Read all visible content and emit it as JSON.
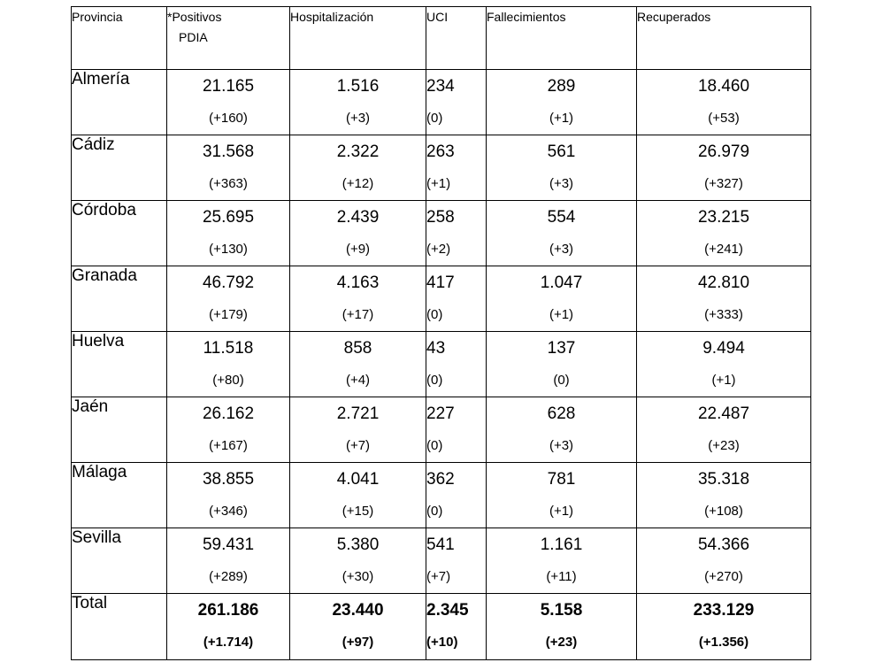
{
  "headers": {
    "provincia": "Provincia",
    "positivos_line1": "*Positivos",
    "positivos_line2": "PDIA",
    "hospitalizacion": "Hospitalización",
    "uci": "UCI",
    "fallecimientos": "Fallecimientos",
    "recuperados": "Recuperados"
  },
  "rows": [
    {
      "province": "Almería",
      "positivos": "21.165",
      "positivos_delta": "(+160)",
      "hosp": "1.516",
      "hosp_delta": "(+3)",
      "uci": "234",
      "uci_delta": "(0)",
      "fall": "289",
      "fall_delta": "(+1)",
      "rec": "18.460",
      "rec_delta": "(+53)"
    },
    {
      "province": "Cádiz",
      "positivos": "31.568",
      "positivos_delta": "(+363)",
      "hosp": "2.322",
      "hosp_delta": "(+12)",
      "uci": "263",
      "uci_delta": "(+1)",
      "fall": "561",
      "fall_delta": "(+3)",
      "rec": "26.979",
      "rec_delta": "(+327)"
    },
    {
      "province": "Córdoba",
      "positivos": "25.695",
      "positivos_delta": "(+130)",
      "hosp": "2.439",
      "hosp_delta": "(+9)",
      "uci": "258",
      "uci_delta": "(+2)",
      "fall": "554",
      "fall_delta": "(+3)",
      "rec": "23.215",
      "rec_delta": "(+241)"
    },
    {
      "province": "Granada",
      "positivos": "46.792",
      "positivos_delta": "(+179)",
      "hosp": "4.163",
      "hosp_delta": "(+17)",
      "uci": "417",
      "uci_delta": "(0)",
      "fall": "1.047",
      "fall_delta": "(+1)",
      "rec": "42.810",
      "rec_delta": "(+333)"
    },
    {
      "province": "Huelva",
      "positivos": "11.518",
      "positivos_delta": "(+80)",
      "hosp": "858",
      "hosp_delta": "(+4)",
      "uci": "43",
      "uci_delta": "(0)",
      "fall": "137",
      "fall_delta": "(0)",
      "rec": "9.494",
      "rec_delta": "(+1)"
    },
    {
      "province": "Jaén",
      "positivos": "26.162",
      "positivos_delta": "(+167)",
      "hosp": "2.721",
      "hosp_delta": "(+7)",
      "uci": "227",
      "uci_delta": "(0)",
      "fall": "628",
      "fall_delta": "(+3)",
      "rec": "22.487",
      "rec_delta": "(+23)"
    },
    {
      "province": "Málaga",
      "positivos": "38.855",
      "positivos_delta": "(+346)",
      "hosp": "4.041",
      "hosp_delta": "(+15)",
      "uci": "362",
      "uci_delta": "(0)",
      "fall": "781",
      "fall_delta": "(+1)",
      "rec": "35.318",
      "rec_delta": "(+108)"
    },
    {
      "province": "Sevilla",
      "positivos": "59.431",
      "positivos_delta": "(+289)",
      "hosp": "5.380",
      "hosp_delta": "(+30)",
      "uci": "541",
      "uci_delta": "(+7)",
      "fall": "1.161",
      "fall_delta": "(+11)",
      "rec": "54.366",
      "rec_delta": "(+270)"
    }
  ],
  "total": {
    "province": "Total",
    "positivos": "261.186",
    "positivos_delta": "(+1.714)",
    "hosp": "23.440",
    "hosp_delta": "(+97)",
    "uci": "2.345",
    "uci_delta": "(+10)",
    "fall": "5.158",
    "fall_delta": "(+23)",
    "rec": "233.129",
    "rec_delta": "(+1.356)"
  },
  "colors": {
    "text": "#000000",
    "border": "#000000",
    "background": "#ffffff"
  }
}
